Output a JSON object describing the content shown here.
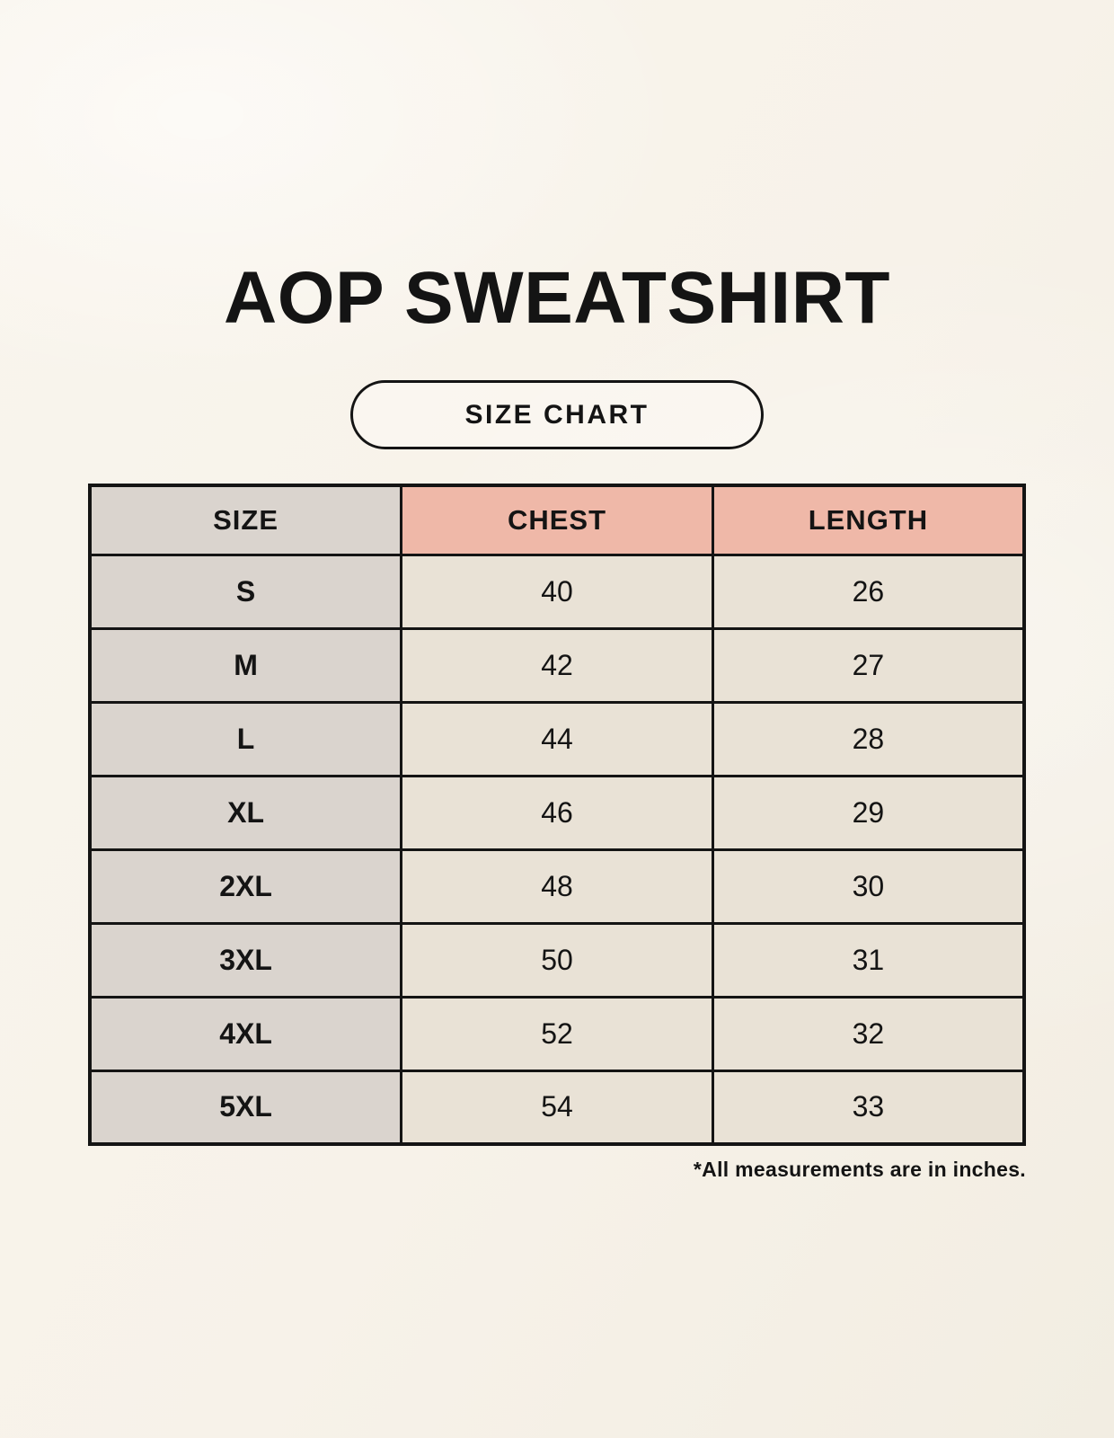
{
  "page": {
    "title": "AOP SWEATSHIRT",
    "badge_label": "SIZE CHART",
    "footnote": "*All measurements are in inches."
  },
  "colors": {
    "page-bg": "#f7f2e9",
    "header-accent": "#efb8a8",
    "size-col-bg": "#dad4ce",
    "cell-bg": "#e9e2d6",
    "border": "#141414",
    "text": "#141414"
  },
  "chart_data": {
    "type": "table",
    "title": "AOP SWEATSHIRT",
    "subtitle": "SIZE CHART",
    "columns": [
      "SIZE",
      "CHEST",
      "LENGTH"
    ],
    "rows": [
      [
        "S",
        40,
        26
      ],
      [
        "M",
        42,
        27
      ],
      [
        "L",
        44,
        28
      ],
      [
        "XL",
        46,
        29
      ],
      [
        "2XL",
        48,
        30
      ],
      [
        "3XL",
        50,
        31
      ],
      [
        "4XL",
        52,
        32
      ],
      [
        "5XL",
        54,
        33
      ]
    ],
    "units": "inches",
    "footnote": "*All measurements are in inches."
  }
}
